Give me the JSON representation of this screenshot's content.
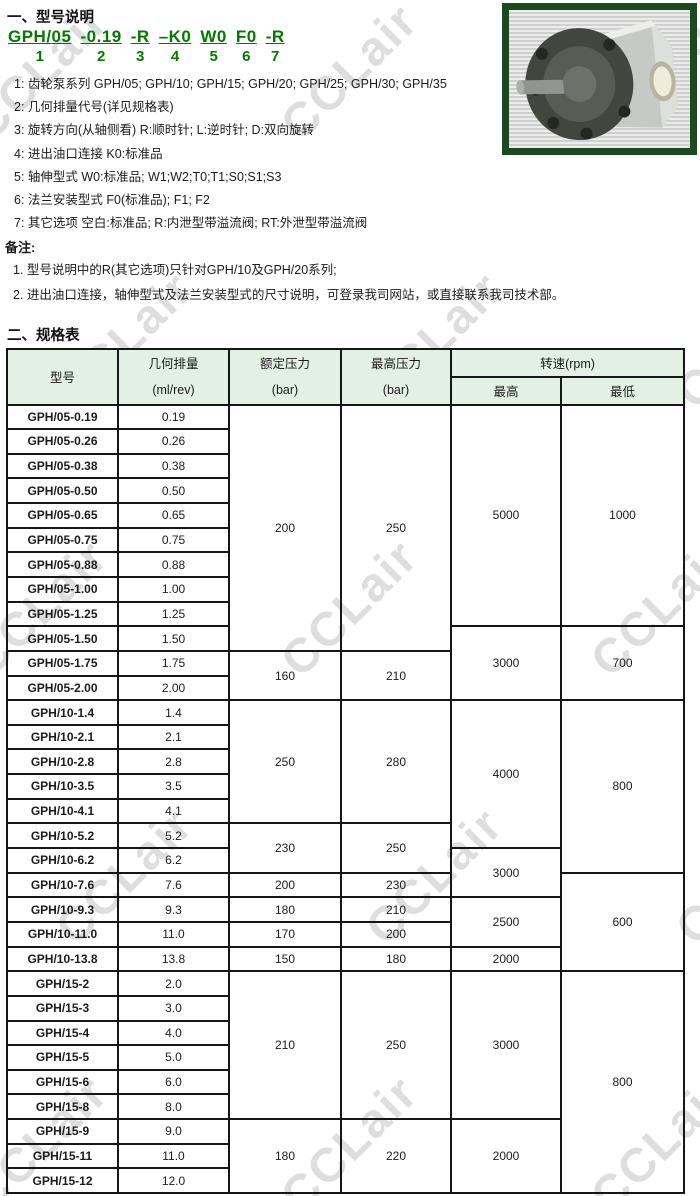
{
  "watermark": {
    "text": "CCLair",
    "color": "#d9d9d9"
  },
  "section1": {
    "title": "一、型号说明",
    "model_segments": [
      {
        "code": "GPH/05",
        "num": "1"
      },
      {
        "code": "-0.19",
        "num": "2"
      },
      {
        "code": "-R",
        "num": "3"
      },
      {
        "code": "–K0",
        "num": "4"
      },
      {
        "code": "W0",
        "num": "5"
      },
      {
        "code": "F0",
        "num": "6"
      },
      {
        "code": "-R",
        "num": "7"
      }
    ],
    "items": [
      "1: 齿轮泵系列  GPH/05; GPH/10; GPH/15; GPH/20; GPH/25; GPH/30; GPH/35",
      "2: 几何排量代号(详见规格表)",
      "3: 旋转方向(从轴侧看)  R:顺时针;  L:逆时针;  D:双向旋转",
      "4: 进出油口连接  K0:标准品",
      "5: 轴伸型式  W0:标准品; W1;W2;T0;T1;S0;S1;S3",
      "6: 法兰安装型式  F0(标准品); F1; F2",
      "7: 其它选项  空白:标准品;  R:内泄型带溢流阀;  RT:外泄型带溢流阀"
    ],
    "notes_title": "备注:",
    "notes": [
      "1. 型号说明中的R(其它选项)只针对GPH/10及GPH/20系列;",
      "2. 进出油口连接，轴伸型式及法兰安装型式的尺寸说明，可登录我司网站，或直接联系我司技术部。"
    ],
    "photo_alt": "gear-pump-photo"
  },
  "section2": {
    "title": "二、规格表"
  },
  "table": {
    "headers": {
      "model": "型号",
      "disp_l1": "几何排量",
      "disp_l2": "(ml/rev)",
      "rated_l1": "额定压力",
      "rated_l2": "(bar)",
      "pmax_l1": "最高压力",
      "pmax_l2": "(bar)",
      "speed": "转速(rpm)",
      "speed_max": "最高",
      "speed_min": "最低"
    },
    "rows": [
      {
        "cells": [
          {
            "t": "GPH/05-0.19",
            "c": "model"
          },
          {
            "t": "0.19",
            "c": "disp"
          },
          {
            "t": "200",
            "c": "rated",
            "rs": 10
          },
          {
            "t": "250",
            "c": "pmax",
            "rs": 10
          },
          {
            "t": "5000",
            "c": "smax",
            "rs": 9
          },
          {
            "t": "1000",
            "c": "smin",
            "rs": 9
          }
        ]
      },
      {
        "cells": [
          {
            "t": "GPH/05-0.26",
            "c": "model"
          },
          {
            "t": "0.26",
            "c": "disp"
          }
        ]
      },
      {
        "cells": [
          {
            "t": "GPH/05-0.38",
            "c": "model"
          },
          {
            "t": "0.38",
            "c": "disp"
          }
        ]
      },
      {
        "cells": [
          {
            "t": "GPH/05-0.50",
            "c": "model"
          },
          {
            "t": "0.50",
            "c": "disp"
          }
        ]
      },
      {
        "cells": [
          {
            "t": "GPH/05-0.65",
            "c": "model"
          },
          {
            "t": "0.65",
            "c": "disp"
          }
        ]
      },
      {
        "cells": [
          {
            "t": "GPH/05-0.75",
            "c": "model"
          },
          {
            "t": "0.75",
            "c": "disp"
          }
        ]
      },
      {
        "cells": [
          {
            "t": "GPH/05-0.88",
            "c": "model"
          },
          {
            "t": "0.88",
            "c": "disp"
          }
        ]
      },
      {
        "dashed": true,
        "cells": [
          {
            "t": "GPH/05-1.00",
            "c": "model"
          },
          {
            "t": "1.00",
            "c": "disp"
          }
        ]
      },
      {
        "cells": [
          {
            "t": "GPH/05-1.25",
            "c": "model"
          },
          {
            "t": "1.25",
            "c": "disp"
          }
        ]
      },
      {
        "cells": [
          {
            "t": "GPH/05-1.50",
            "c": "model"
          },
          {
            "t": "1.50",
            "c": "disp"
          },
          {
            "t": "3000",
            "c": "smax",
            "rs": 3
          },
          {
            "t": "700",
            "c": "smin",
            "rs": 3
          }
        ]
      },
      {
        "cells": [
          {
            "t": "GPH/05-1.75",
            "c": "model"
          },
          {
            "t": "1.75",
            "c": "disp"
          },
          {
            "t": "160",
            "c": "rated",
            "rs": 2
          },
          {
            "t": "210",
            "c": "pmax",
            "rs": 2
          }
        ]
      },
      {
        "cells": [
          {
            "t": "GPH/05-2.00",
            "c": "model"
          },
          {
            "t": "2.00",
            "c": "disp"
          }
        ]
      },
      {
        "cells": [
          {
            "t": "GPH/10-1.4",
            "c": "model"
          },
          {
            "t": "1.4",
            "c": "disp"
          },
          {
            "t": "250",
            "c": "rated",
            "rs": 5
          },
          {
            "t": "280",
            "c": "pmax",
            "rs": 5
          },
          {
            "t": "4000",
            "c": "smax",
            "rs": 6
          },
          {
            "t": "800",
            "c": "smin",
            "rs": 7
          }
        ]
      },
      {
        "cells": [
          {
            "t": "GPH/10-2.1",
            "c": "model"
          },
          {
            "t": "2.1",
            "c": "disp"
          }
        ]
      },
      {
        "cells": [
          {
            "t": "GPH/10-2.8",
            "c": "model"
          },
          {
            "t": "2.8",
            "c": "disp"
          }
        ]
      },
      {
        "cells": [
          {
            "t": "GPH/10-3.5",
            "c": "model"
          },
          {
            "t": "3.5",
            "c": "disp"
          }
        ]
      },
      {
        "cells": [
          {
            "t": "GPH/10-4.1",
            "c": "model"
          },
          {
            "t": "4.1",
            "c": "disp"
          }
        ]
      },
      {
        "cells": [
          {
            "t": "GPH/10-5.2",
            "c": "model"
          },
          {
            "t": "5.2",
            "c": "disp"
          },
          {
            "t": "230",
            "c": "rated",
            "rs": 2
          },
          {
            "t": "250",
            "c": "pmax",
            "rs": 2
          }
        ]
      },
      {
        "cells": [
          {
            "t": "GPH/10-6.2",
            "c": "model"
          },
          {
            "t": "6.2",
            "c": "disp"
          },
          {
            "t": "3000",
            "c": "smax",
            "rs": 2
          }
        ]
      },
      {
        "cells": [
          {
            "t": "GPH/10-7.6",
            "c": "model"
          },
          {
            "t": "7.6",
            "c": "disp"
          },
          {
            "t": "200",
            "c": "rated"
          },
          {
            "t": "230",
            "c": "pmax"
          },
          {
            "t": "600",
            "c": "smin",
            "rs": 4
          }
        ]
      },
      {
        "cells": [
          {
            "t": "GPH/10-9.3",
            "c": "model"
          },
          {
            "t": "9.3",
            "c": "disp"
          },
          {
            "t": "180",
            "c": "rated"
          },
          {
            "t": "210",
            "c": "pmax"
          },
          {
            "t": "2500",
            "c": "smax",
            "rs": 2
          }
        ]
      },
      {
        "cells": [
          {
            "t": "GPH/10-11.0",
            "c": "model"
          },
          {
            "t": "11.0",
            "c": "disp"
          },
          {
            "t": "170",
            "c": "rated"
          },
          {
            "t": "200",
            "c": "pmax"
          }
        ]
      },
      {
        "cells": [
          {
            "t": "GPH/10-13.8",
            "c": "model"
          },
          {
            "t": "13.8",
            "c": "disp"
          },
          {
            "t": "150",
            "c": "rated"
          },
          {
            "t": "180",
            "c": "pmax"
          },
          {
            "t": "2000",
            "c": "smax"
          }
        ]
      },
      {
        "cells": [
          {
            "t": "GPH/15-2",
            "c": "model"
          },
          {
            "t": "2.0",
            "c": "disp"
          },
          {
            "t": "210",
            "c": "rated",
            "rs": 6
          },
          {
            "t": "250",
            "c": "pmax",
            "rs": 6
          },
          {
            "t": "3000",
            "c": "smax",
            "rs": 6
          },
          {
            "t": "800",
            "c": "smin",
            "rs": 9
          }
        ]
      },
      {
        "cells": [
          {
            "t": "GPH/15-3",
            "c": "model"
          },
          {
            "t": "3.0",
            "c": "disp"
          }
        ]
      },
      {
        "cells": [
          {
            "t": "GPH/15-4",
            "c": "model"
          },
          {
            "t": "4.0",
            "c": "disp"
          }
        ]
      },
      {
        "cells": [
          {
            "t": "GPH/15-5",
            "c": "model"
          },
          {
            "t": "5.0",
            "c": "disp"
          }
        ]
      },
      {
        "cells": [
          {
            "t": "GPH/15-6",
            "c": "model"
          },
          {
            "t": "6.0",
            "c": "disp"
          }
        ]
      },
      {
        "cells": [
          {
            "t": "GPH/15-8",
            "c": "model"
          },
          {
            "t": "8.0",
            "c": "disp"
          }
        ]
      },
      {
        "cells": [
          {
            "t": "GPH/15-9",
            "c": "model"
          },
          {
            "t": "9.0",
            "c": "disp"
          },
          {
            "t": "180",
            "c": "rated",
            "rs": 3
          },
          {
            "t": "220",
            "c": "pmax",
            "rs": 3
          },
          {
            "t": "2000",
            "c": "smax",
            "rs": 3
          }
        ]
      },
      {
        "cells": [
          {
            "t": "GPH/15-11",
            "c": "model"
          },
          {
            "t": "11.0",
            "c": "disp"
          }
        ]
      },
      {
        "cells": [
          {
            "t": "GPH/15-12",
            "c": "model"
          },
          {
            "t": "12.0",
            "c": "disp"
          }
        ]
      }
    ]
  }
}
